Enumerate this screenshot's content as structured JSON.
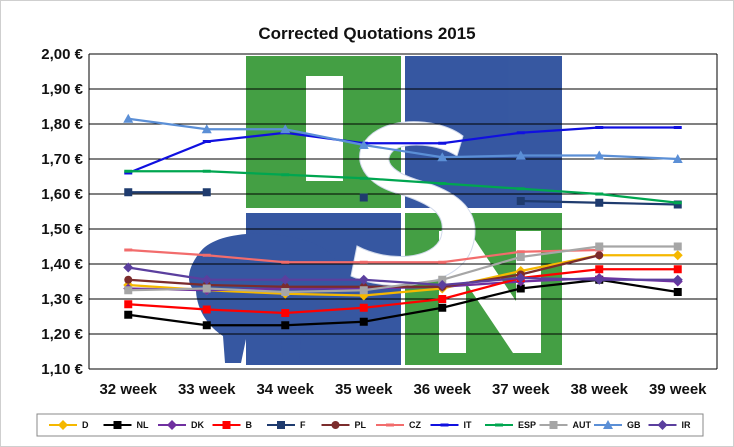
{
  "chart_data": {
    "type": "line",
    "title": "Corrected Quotations 2015",
    "categories": [
      "32 week",
      "33 week",
      "34 week",
      "35 week",
      "36 week",
      "37 week",
      "38 week",
      "39 week"
    ],
    "y_ticks": [
      "1,10 €",
      "1,20 €",
      "1,30 €",
      "1,40 €",
      "1,50 €",
      "1,60 €",
      "1,70 €",
      "1,80 €",
      "1,90 €",
      "2,00 €"
    ],
    "ylim": [
      1.1,
      2.0
    ],
    "grid": true,
    "legend_position": "bottom",
    "watermark_text": "ISN",
    "series": [
      {
        "name": "D",
        "color": "#f5b800",
        "marker": "diamond",
        "values": [
          1.34,
          1.325,
          1.315,
          1.31,
          1.33,
          1.38,
          1.425,
          1.425
        ]
      },
      {
        "name": "NL",
        "color": "#000000",
        "marker": "square",
        "values": [
          1.255,
          1.225,
          1.225,
          1.235,
          1.275,
          1.33,
          1.355,
          1.32
        ]
      },
      {
        "name": "DK",
        "color": "#7030a0",
        "marker": "diamond",
        "values": [
          1.33,
          1.325,
          1.33,
          1.33,
          1.335,
          1.35,
          1.36,
          1.35
        ]
      },
      {
        "name": "B",
        "color": "#ff0000",
        "marker": "square",
        "values": [
          1.285,
          1.27,
          1.26,
          1.275,
          1.3,
          1.36,
          1.385,
          1.385
        ]
      },
      {
        "name": "F",
        "color": "#1f3b6e",
        "marker": "square",
        "values": [
          1.605,
          1.605,
          null,
          1.59,
          null,
          1.58,
          1.575,
          1.57
        ]
      },
      {
        "name": "PL",
        "color": "#7b2c2c",
        "marker": "circle",
        "values": [
          1.355,
          1.34,
          1.335,
          1.335,
          1.335,
          1.37,
          1.425,
          null
        ]
      },
      {
        "name": "CZ",
        "color": "#f26c6c",
        "marker": "dash",
        "values": [
          1.44,
          1.425,
          1.405,
          1.405,
          1.405,
          1.435,
          1.44,
          null
        ]
      },
      {
        "name": "IT",
        "color": "#1010e0",
        "marker": "dash",
        "values": [
          1.66,
          1.75,
          1.775,
          1.745,
          1.745,
          1.775,
          1.79,
          1.79
        ]
      },
      {
        "name": "ESP",
        "color": "#00a650",
        "marker": "dash",
        "values": [
          1.665,
          1.665,
          1.655,
          1.645,
          1.63,
          1.615,
          1.6,
          1.575
        ]
      },
      {
        "name": "AUT",
        "color": "#a6a6a6",
        "marker": "square",
        "values": [
          1.325,
          1.33,
          1.32,
          1.325,
          1.355,
          1.42,
          1.45,
          1.45
        ]
      },
      {
        "name": "GB",
        "color": "#5b8fd6",
        "marker": "triangle",
        "values": [
          1.815,
          1.785,
          1.785,
          1.74,
          1.705,
          1.71,
          1.71,
          1.7
        ]
      },
      {
        "name": "IR",
        "color": "#5b3f9e",
        "marker": "diamond",
        "values": [
          1.39,
          1.355,
          1.355,
          1.355,
          1.34,
          1.36,
          1.355,
          1.355
        ]
      }
    ]
  }
}
